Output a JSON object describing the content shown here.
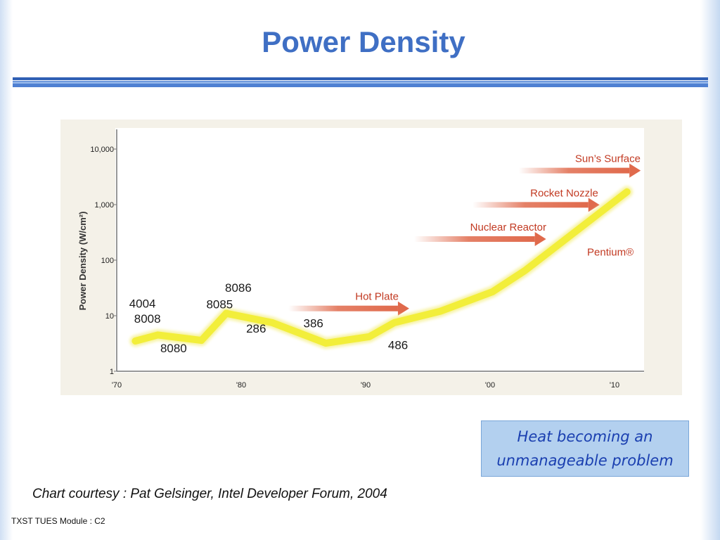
{
  "slide": {
    "title": "Power Density",
    "callout_line1": "Heat becoming an",
    "callout_line2": "unmanageable problem",
    "credit": "Chart courtesy : Pat Gelsinger, Intel Developer Forum, 2004",
    "footer": "TXST TUES Module : C2"
  },
  "colors": {
    "title": "#3f6fc4",
    "rule": "#4a78c8",
    "trend_line": "#f2ee3a",
    "arrow": "#e06a4c",
    "label_red": "#c23a22"
  },
  "chart_data": {
    "type": "line",
    "title": "",
    "ylabel": "Power Density (W/cm²)",
    "xlabel": "",
    "y_scale": "log",
    "ylim": [
      1,
      10000
    ],
    "xlim": [
      1970,
      2012
    ],
    "yticks": [
      {
        "value": 1,
        "label": "1"
      },
      {
        "value": 10,
        "label": "10"
      },
      {
        "value": 100,
        "label": "100"
      },
      {
        "value": 1000,
        "label": "1,000"
      },
      {
        "value": 10000,
        "label": "10,000"
      }
    ],
    "xticks": [
      {
        "value": 1970,
        "label": "'70"
      },
      {
        "value": 1980,
        "label": "'80"
      },
      {
        "value": 1990,
        "label": "'90"
      },
      {
        "value": 2000,
        "label": "'00"
      },
      {
        "value": 2010,
        "label": "'10"
      }
    ],
    "grid": false,
    "series": [
      {
        "points": [
          {
            "x": 1971.5,
            "y": 3.5
          },
          {
            "x": 1973.3,
            "y": 4.5
          },
          {
            "x": 1976.8,
            "y": 3.6
          },
          {
            "x": 1978.8,
            "y": 11
          },
          {
            "x": 1982.5,
            "y": 7.5
          },
          {
            "x": 1986.8,
            "y": 3.2
          },
          {
            "x": 1990.3,
            "y": 4.2
          },
          {
            "x": 1992.3,
            "y": 7.5
          },
          {
            "x": 1996.0,
            "y": 12
          },
          {
            "x": 2000.2,
            "y": 27
          },
          {
            "x": 2002.8,
            "y": 65
          },
          {
            "x": 2011.0,
            "y": 1700
          }
        ]
      }
    ],
    "processor_labels": [
      {
        "text": "4004",
        "x": 1971.0,
        "y": 14
      },
      {
        "text": "8008",
        "x": 1971.4,
        "y": 7.5
      },
      {
        "text": "8080",
        "x": 1973.5,
        "y": 2.2
      },
      {
        "text": "8086",
        "x": 1978.7,
        "y": 27
      },
      {
        "text": "8085",
        "x": 1977.2,
        "y": 13.5
      },
      {
        "text": "286",
        "x": 1980.4,
        "y": 5.0
      },
      {
        "text": "386",
        "x": 1985.0,
        "y": 6.2
      },
      {
        "text": "486",
        "x": 1991.8,
        "y": 2.5
      },
      {
        "text": "Pentium®",
        "x": 2007.8,
        "y": 120
      }
    ],
    "annotations": [
      {
        "text": "Sun’s Surface",
        "x_start": 2002.3,
        "x_end": 2012.1,
        "y": 4100
      },
      {
        "text": "Rocket Nozzle",
        "x_start": 1998.6,
        "x_end": 2008.8,
        "y": 990
      },
      {
        "text": "Nuclear Reactor",
        "x_start": 1993.9,
        "x_end": 2004.5,
        "y": 240
      },
      {
        "text": "Hot Plate",
        "x_start": 1983.8,
        "x_end": 1993.5,
        "y": 13.5
      }
    ]
  }
}
